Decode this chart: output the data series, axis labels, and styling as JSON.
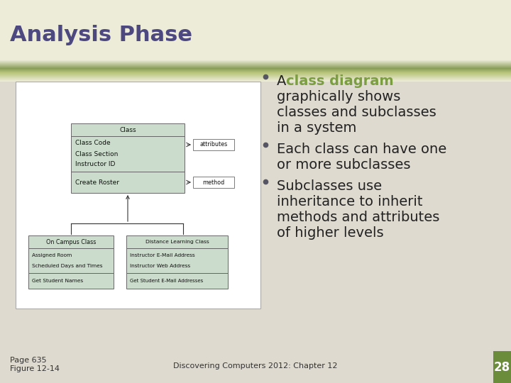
{
  "title": "Analysis Phase",
  "title_color": "#4d4880",
  "title_fontsize": 22,
  "bg_top_color": "#edecd8",
  "bg_bottom_color": "#dedad0",
  "band_top_color": "#8a9e5a",
  "band_bottom_color": "#b8c47a",
  "bullet_color": "#222222",
  "highlight_color": "#7a9e40",
  "footer_left1": "Page 635",
  "footer_left2": "Figure 12-14",
  "footer_center": "Discovering Computers 2012: Chapter 12",
  "footer_number": "28",
  "footer_number_bg": "#6b8c3a",
  "box_fill": "#ccdccc",
  "box_border": "#666666",
  "label_box_fill": "#ffffff",
  "font_size_bullet": 14,
  "font_size_footer": 8,
  "font_size_diagram": 6.5
}
